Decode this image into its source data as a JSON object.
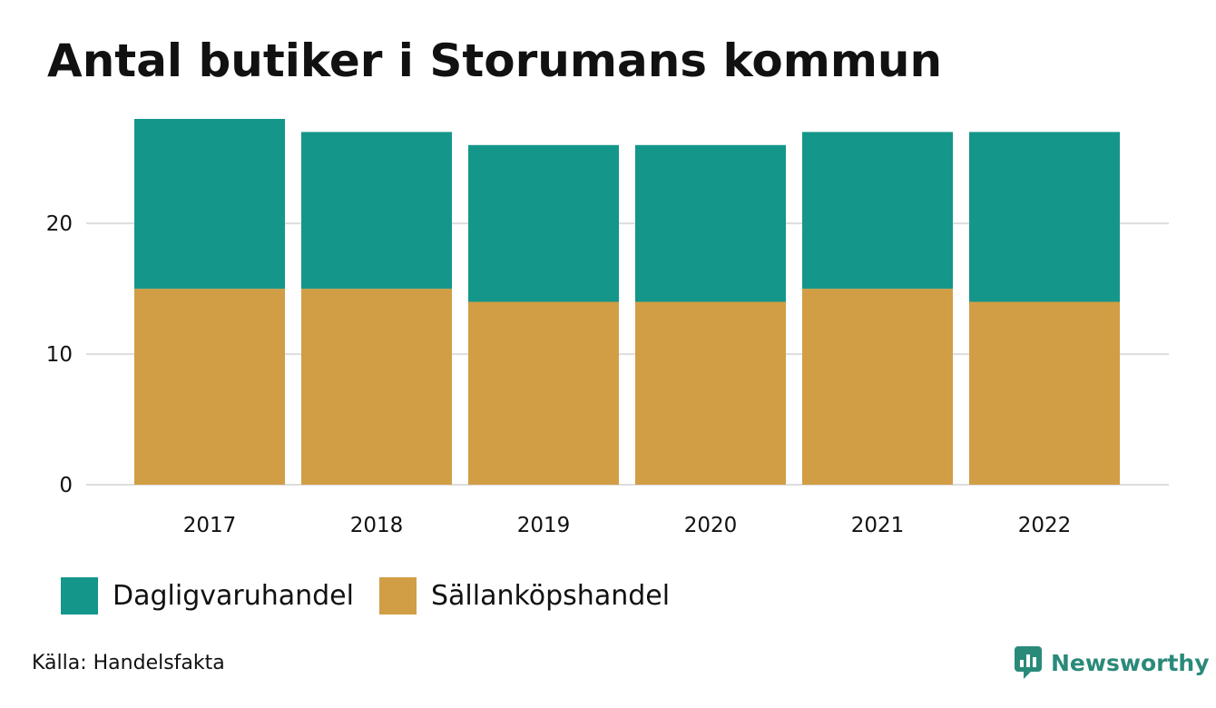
{
  "chart_data": {
    "type": "bar",
    "stacked": true,
    "title": "Antal butiker i Storumans kommun",
    "categories": [
      "2017",
      "2018",
      "2019",
      "2020",
      "2021",
      "2022"
    ],
    "series": [
      {
        "name": "Sällanköpshandel",
        "color": "#d19e45",
        "values": [
          15,
          15,
          14,
          14,
          15,
          14
        ]
      },
      {
        "name": "Dagligvaruhandel",
        "color": "#15968a",
        "values": [
          13,
          12,
          12,
          12,
          12,
          13
        ]
      }
    ],
    "yticks": [
      "0",
      "10",
      "20"
    ],
    "ylim": [
      0,
      28
    ],
    "grid": true,
    "legend_position": "bottom-left"
  },
  "legend": [
    {
      "label": "Dagligvaruhandel",
      "color": "#15968a"
    },
    {
      "label": "Sällanköpshandel",
      "color": "#d19e45"
    }
  ],
  "source": "Källa: Handelsfakta",
  "brand": {
    "name": "Newsworthy",
    "icon": "newsworthy-bar-chart-icon",
    "color": "#2a8a7a"
  }
}
